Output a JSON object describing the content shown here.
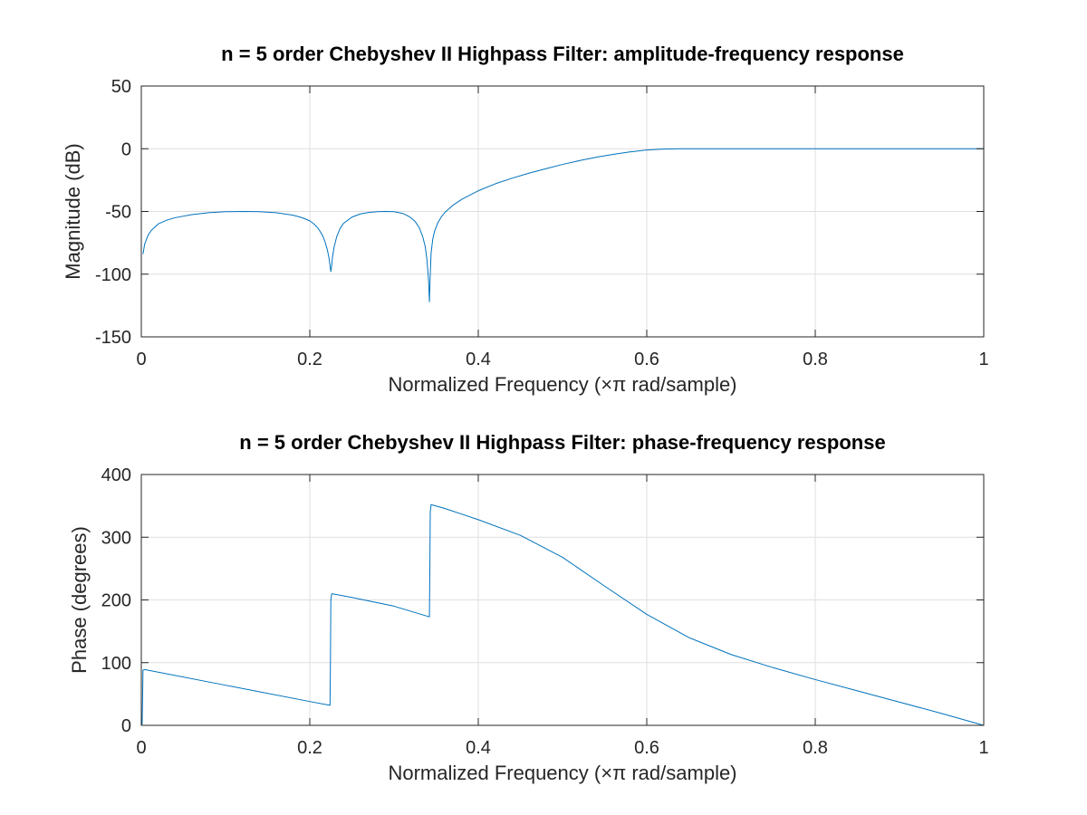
{
  "chart_data": [
    {
      "type": "line",
      "title": "n = 5 order Chebyshev II Highpass Filter: amplitude-frequency response",
      "xlabel": "Normalized Frequency (×π rad/sample)",
      "ylabel": "Magnitude (dB)",
      "xlim": [
        0,
        1
      ],
      "ylim": [
        -150,
        50
      ],
      "xticks": [
        0,
        0.2,
        0.4,
        0.6,
        0.8,
        1
      ],
      "xtick_labels": [
        "0",
        "0.2",
        "0.4",
        "0.6",
        "0.8",
        "1"
      ],
      "yticks": [
        -150,
        -100,
        -50,
        0,
        50
      ],
      "ytick_labels": [
        "-150",
        "-100",
        "-50",
        "0",
        "50"
      ],
      "grid": true,
      "series_color": "#0072bd",
      "series": [
        {
          "x": [
            0.002,
            0.004,
            0.008,
            0.012,
            0.02,
            0.03,
            0.04,
            0.06,
            0.08,
            0.1,
            0.12,
            0.14,
            0.16,
            0.18,
            0.19,
            0.2,
            0.205,
            0.21,
            0.215,
            0.218,
            0.221,
            0.223,
            0.224,
            0.225,
            0.226,
            0.227,
            0.229,
            0.232,
            0.236,
            0.24,
            0.25,
            0.26,
            0.27,
            0.28,
            0.29,
            0.3,
            0.31,
            0.315,
            0.32,
            0.325,
            0.33,
            0.334,
            0.337,
            0.339,
            0.341,
            0.342,
            0.343,
            0.344,
            0.346,
            0.348,
            0.352,
            0.356,
            0.36,
            0.37,
            0.38,
            0.4,
            0.42,
            0.44,
            0.46,
            0.48,
            0.5,
            0.52,
            0.54,
            0.56,
            0.58,
            0.6,
            0.62,
            0.64,
            0.66,
            0.7,
            0.8,
            0.9,
            1.0
          ],
          "y": [
            -84,
            -76,
            -69,
            -65,
            -60,
            -57,
            -55,
            -52.5,
            -51,
            -50.2,
            -50,
            -50.2,
            -51,
            -53,
            -54.8,
            -57.5,
            -60,
            -63.5,
            -69,
            -74,
            -81,
            -88,
            -93,
            -98,
            -93,
            -86,
            -78,
            -70,
            -63.5,
            -59.5,
            -54.5,
            -52,
            -50.8,
            -50.2,
            -50,
            -50.2,
            -51.5,
            -53,
            -55,
            -58,
            -63,
            -70,
            -78,
            -88,
            -105,
            -122,
            -100,
            -83,
            -72,
            -66,
            -59,
            -54.5,
            -51,
            -45,
            -40.5,
            -33.5,
            -28,
            -23.5,
            -19.5,
            -16,
            -12.5,
            -9.5,
            -6.8,
            -4.5,
            -2.5,
            -1,
            -0.3,
            0,
            0,
            0,
            0,
            0,
            0
          ]
        }
      ]
    },
    {
      "type": "line",
      "title": "n = 5 order Chebyshev II Highpass Filter: phase-frequency response",
      "xlabel": "Normalized Frequency (×π rad/sample)",
      "ylabel": "Phase (degrees)",
      "xlim": [
        0,
        1
      ],
      "ylim": [
        0,
        400
      ],
      "xticks": [
        0,
        0.2,
        0.4,
        0.6,
        0.8,
        1
      ],
      "xtick_labels": [
        "0",
        "0.2",
        "0.4",
        "0.6",
        "0.8",
        "1"
      ],
      "yticks": [
        0,
        100,
        200,
        300,
        400
      ],
      "ytick_labels": [
        "0",
        "100",
        "200",
        "300",
        "400"
      ],
      "grid": true,
      "series_color": "#0072bd",
      "series": [
        {
          "x": [
            0.0,
            0.001,
            0.002,
            0.004,
            0.1,
            0.2,
            0.224,
            0.2245,
            0.225,
            0.226,
            0.25,
            0.3,
            0.342,
            0.3425,
            0.343,
            0.344,
            0.36,
            0.4,
            0.45,
            0.5,
            0.55,
            0.6,
            0.65,
            0.7,
            0.75,
            0.8,
            0.85,
            0.9,
            0.95,
            1.0
          ],
          "y": [
            2,
            2,
            88,
            89,
            64,
            38,
            32,
            100,
            200,
            210,
            204,
            190,
            173,
            250,
            340,
            352,
            346,
            328,
            303,
            268,
            222,
            177,
            140,
            113,
            92,
            73,
            55,
            37,
            19,
            0
          ]
        }
      ]
    }
  ]
}
